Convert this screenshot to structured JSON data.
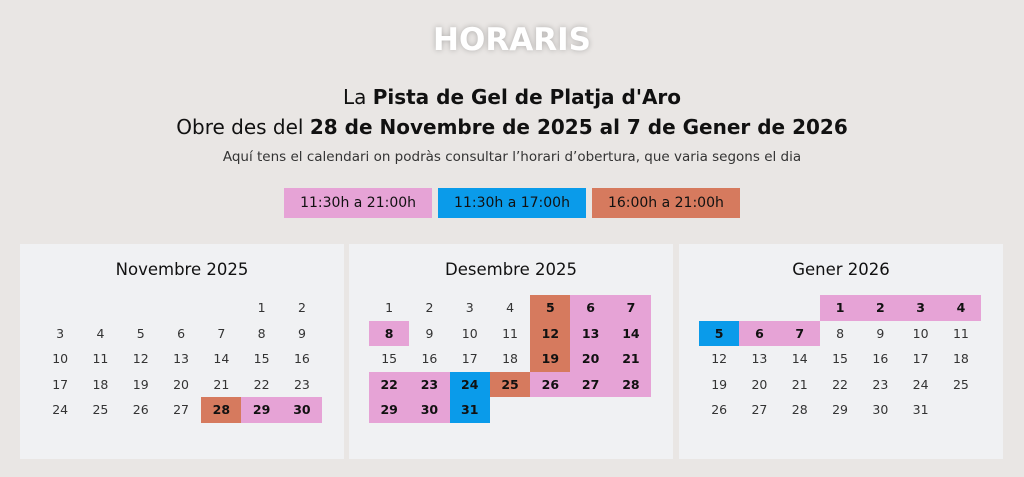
{
  "header": {
    "title": "HORARIS",
    "line1_pre": "La ",
    "line1_bold": "Pista de Gel de Platja d'Aro",
    "line2_pre": "Obre des del ",
    "line2_bold": "28 de Novembre de 2025 al 7 de Gener de 2026",
    "subtitle": "Aquí tens el calendari on podràs consultar l’horari d’obertura, que varia segons el dia"
  },
  "legend": [
    {
      "key": "p",
      "label": "11:30h a 21:00h",
      "color": "#e6a3d6"
    },
    {
      "key": "b",
      "label": "11:30h a 17:00h",
      "color": "#0a9bea"
    },
    {
      "key": "o",
      "label": "16:00h a 21:00h",
      "color": "#d67a5e"
    }
  ],
  "months": [
    {
      "title": "Novembre 2025",
      "year": 2025,
      "month": 11,
      "days": 30,
      "schedule": {
        "28": "o",
        "29": "p",
        "30": "p"
      }
    },
    {
      "title": "Desembre 2025",
      "year": 2025,
      "month": 12,
      "days": 31,
      "schedule": {
        "5": "o",
        "12": "o",
        "19": "o",
        "25": "o",
        "24": "b",
        "31": "b",
        "6": "p",
        "7": "p",
        "8": "p",
        "13": "p",
        "14": "p",
        "20": "p",
        "21": "p",
        "22": "p",
        "23": "p",
        "26": "p",
        "27": "p",
        "28": "p",
        "29": "p",
        "30": "p"
      }
    },
    {
      "title": "Gener 2026",
      "year": 2026,
      "month": 1,
      "days": 31,
      "schedule": {
        "1": "p",
        "2": "p",
        "3": "p",
        "4": "p",
        "5": "b",
        "6": "p",
        "7": "p"
      }
    }
  ]
}
